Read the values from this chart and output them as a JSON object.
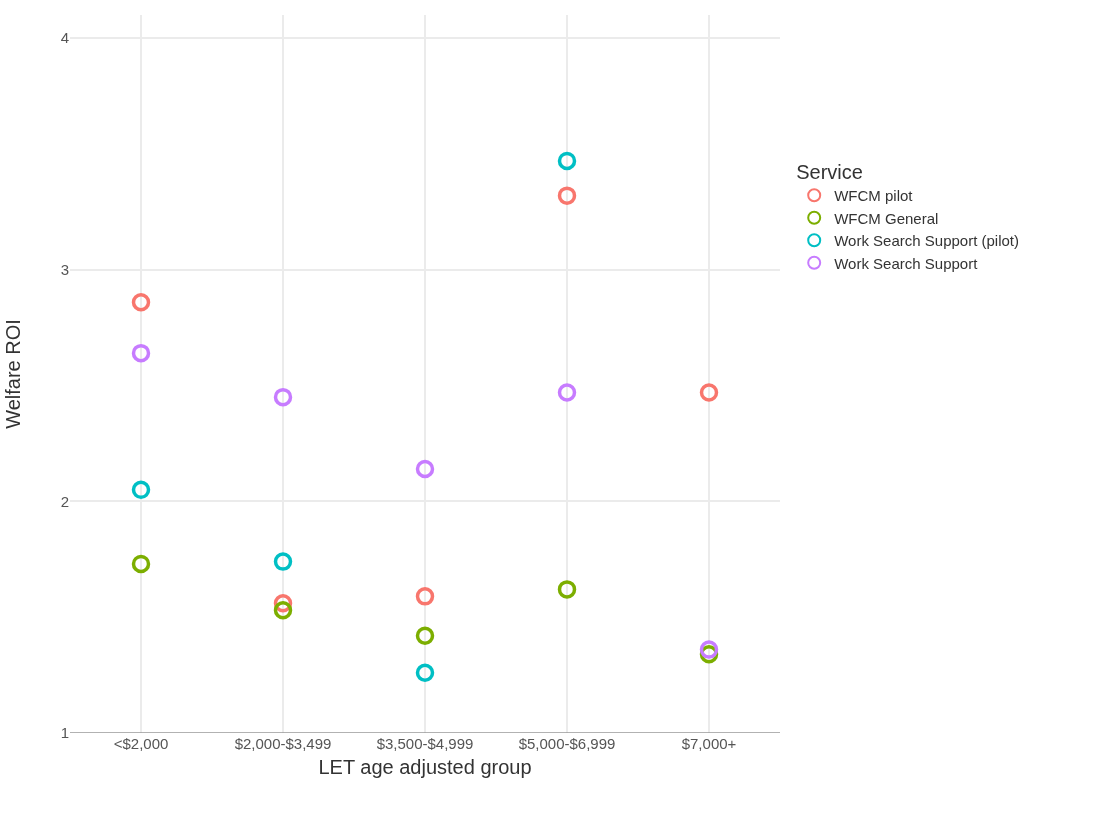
{
  "chart_data": {
    "type": "scatter",
    "xlabel": "LET age adjusted group",
    "ylabel": "Welfare ROI",
    "legend_title": "Service",
    "categories": [
      "<$2,000",
      "$2,000-$3,499",
      "$3,500-$4,999",
      "$5,000-$6,999",
      "$7,000+"
    ],
    "series": [
      {
        "name": "WFCM pilot",
        "color": "#f8766d",
        "values": [
          2.86,
          1.56,
          1.59,
          3.32,
          2.47
        ]
      },
      {
        "name": "WFCM General",
        "color": "#7cae00",
        "values": [
          1.73,
          1.53,
          1.42,
          1.62,
          1.34
        ]
      },
      {
        "name": "Work Search Support (pilot)",
        "color": "#00bfc4",
        "values": [
          2.05,
          1.74,
          1.26,
          3.47,
          null
        ]
      },
      {
        "name": "Work Search Support",
        "color": "#c77cff",
        "values": [
          2.64,
          2.45,
          2.14,
          2.47,
          1.36
        ]
      }
    ],
    "ylim": [
      1,
      4.1
    ],
    "yticks": [
      1,
      2,
      3,
      4
    ],
    "grid": true,
    "legend": "right",
    "marker": "circle"
  }
}
